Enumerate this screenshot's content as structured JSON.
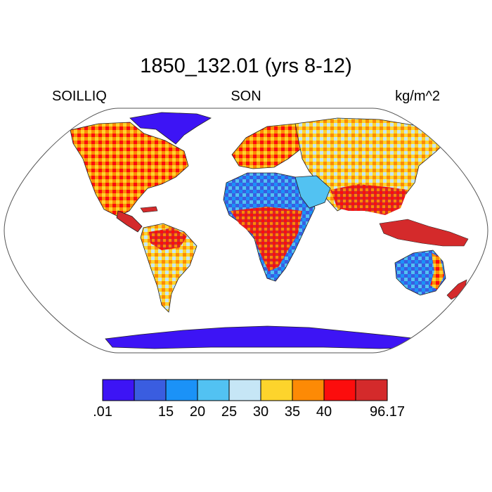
{
  "title": "1850_132.01 (yrs 8-12)",
  "left_label": "SOILLIQ",
  "center_label": "SON",
  "right_label": "kg/m^2",
  "projection": "Robinson",
  "colorbar": {
    "colors": [
      "#3d14f5",
      "#3a5de0",
      "#1b92f7",
      "#52c2f2",
      "#c6e6f6",
      "#fdd42c",
      "#fd8a05",
      "#fc0d0d",
      "#d42a2b"
    ],
    "tick_labels": [
      ".01",
      "15",
      "20",
      "25",
      "30",
      "35",
      "40",
      "96.17"
    ],
    "tick_positions_in_boxes": [
      0,
      2,
      3,
      4,
      5,
      6,
      7,
      9
    ]
  },
  "colors": {
    "coast": "#222222",
    "ocean": "#ffffff",
    "outline": "#555555"
  }
}
